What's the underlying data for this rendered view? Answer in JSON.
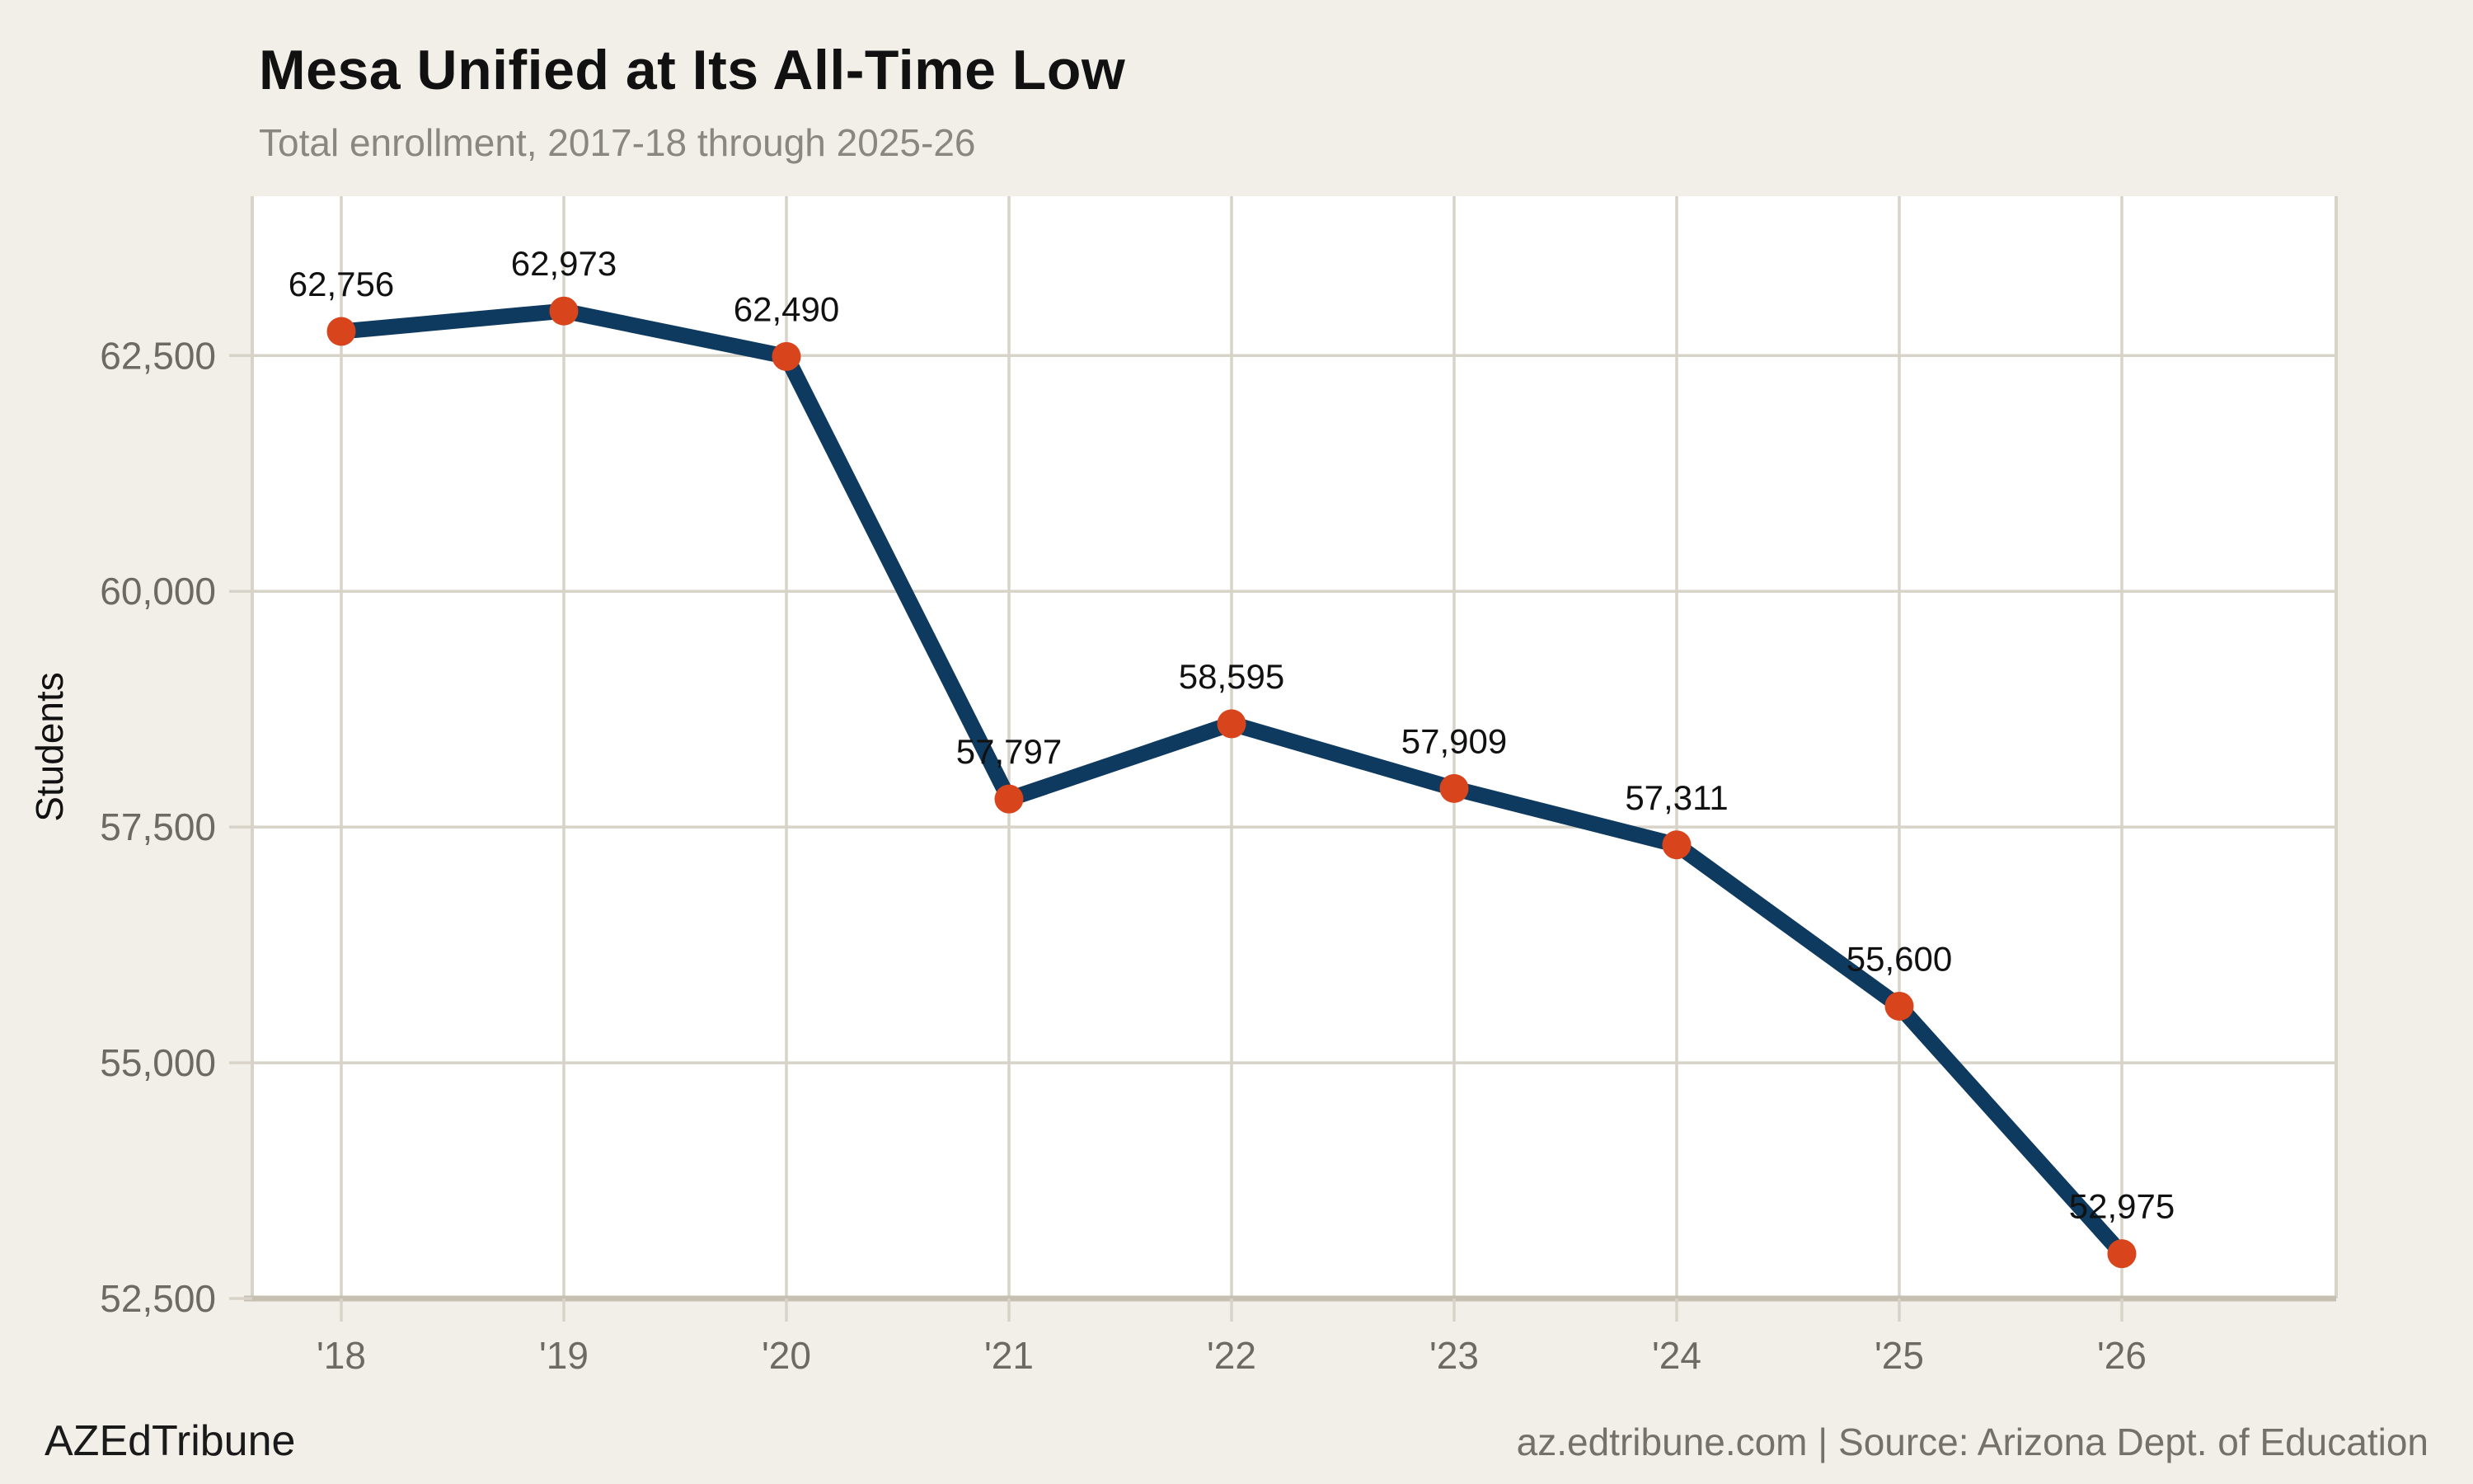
{
  "chart_data": {
    "type": "line",
    "title": "Mesa Unified at Its All-Time Low",
    "subtitle": "Total enrollment, 2017-18 through 2025-26",
    "ylabel": "Students",
    "xlabel": "",
    "categories": [
      "'18",
      "'19",
      "'20",
      "'21",
      "'22",
      "'23",
      "'24",
      "'25",
      "'26"
    ],
    "values": [
      62756,
      62973,
      62490,
      57797,
      58595,
      57909,
      57311,
      55600,
      52975
    ],
    "point_labels": [
      "62,756",
      "62,973",
      "62,490",
      "57,797",
      "58,595",
      "57,909",
      "57,311",
      "55,600",
      "52,975"
    ],
    "yticks": [
      52500,
      55000,
      57500,
      60000,
      62500
    ],
    "ytick_labels": [
      "52,500",
      "55,000",
      "57,500",
      "60,000",
      "62,500"
    ],
    "ylim": [
      52500,
      64190
    ],
    "grid": true,
    "legend": "none"
  },
  "footer": {
    "brand": "AZEdTribune",
    "source": "az.edtribune.com | Source: Arizona Dept. of Education"
  },
  "colors": {
    "page_bg": "#f2efe9",
    "plot_bg": "#ffffff",
    "grid": "#d8d3c8",
    "axis": "#c6c0b3",
    "line": "#0f3a5f",
    "marker": "#d8441c",
    "tick_label": "#6e6a63",
    "subtitle": "#8a8780",
    "title": "#111111",
    "data_label": "#111111",
    "footer_brand": "#1a1a1a",
    "footer_source": "#75716a"
  }
}
